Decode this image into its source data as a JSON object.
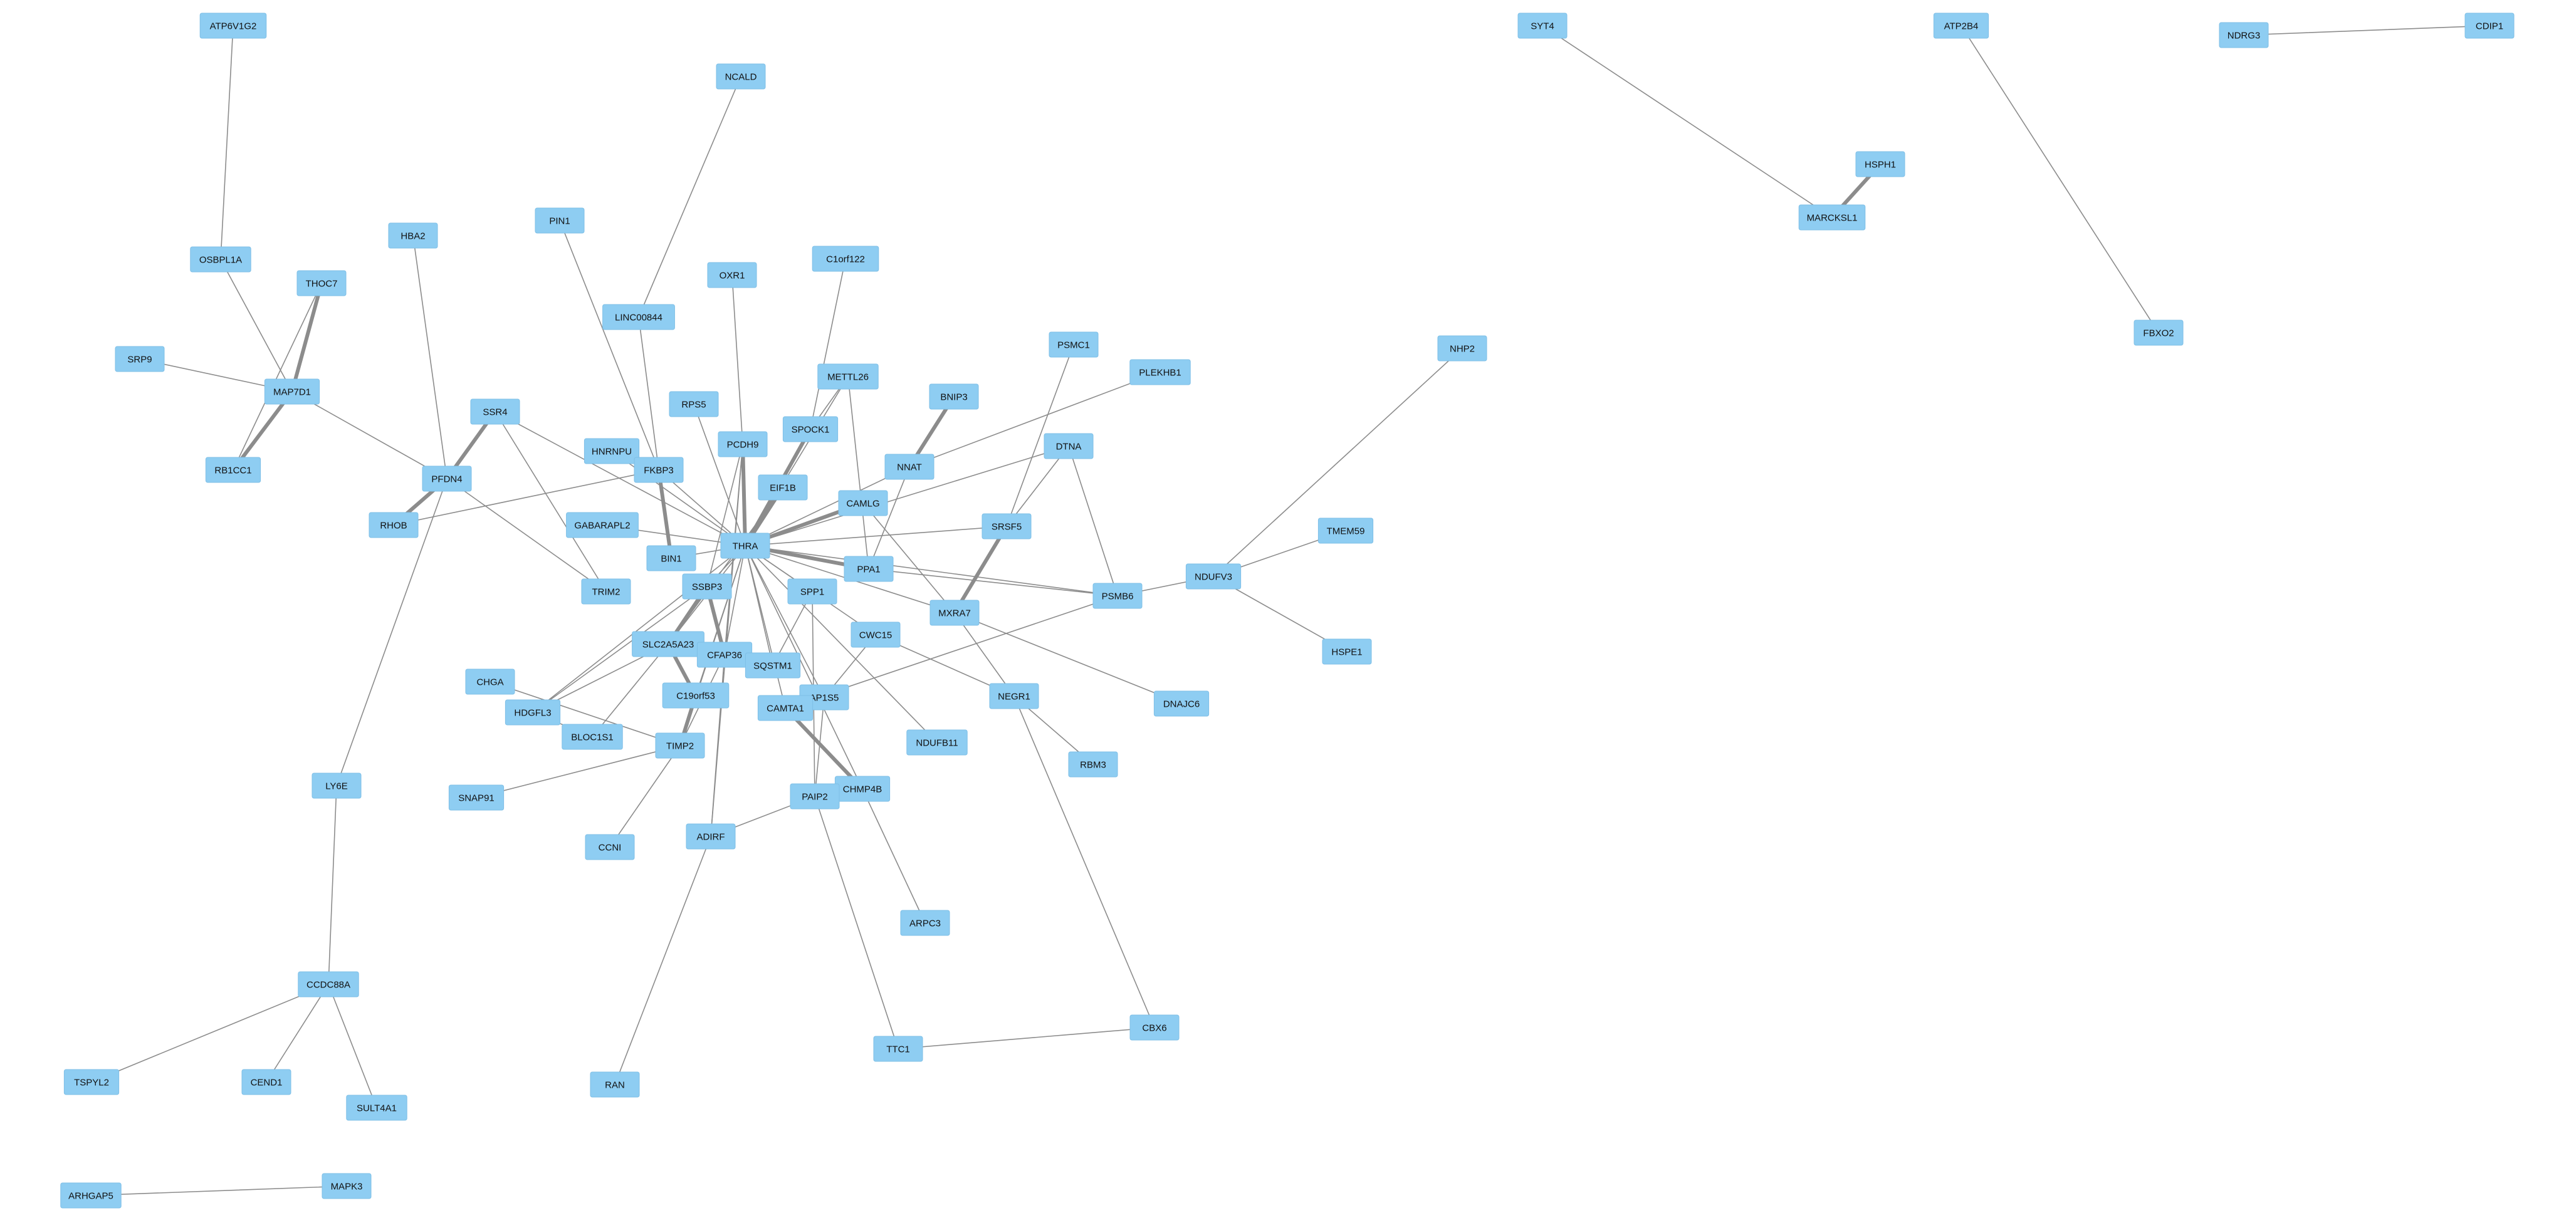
{
  "colors": {
    "node_fill": "#8ecdf2",
    "edge": "#8c8c8c",
    "background": "#ffffff"
  },
  "nodes": [
    {
      "id": "ATP6V1G2",
      "label": "ATP6V1G2"
    },
    {
      "id": "NCALD",
      "label": "NCALD"
    },
    {
      "id": "SYT4",
      "label": "SYT4"
    },
    {
      "id": "ATP2B4",
      "label": "ATP2B4"
    },
    {
      "id": "NDRG3",
      "label": "NDRG3"
    },
    {
      "id": "CDIP1",
      "label": "CDIP1"
    },
    {
      "id": "HSPH1",
      "label": "HSPH1"
    },
    {
      "id": "MARCKSL1",
      "label": "MARCKSL1"
    },
    {
      "id": "OSBPL1A",
      "label": "OSBPL1A"
    },
    {
      "id": "HBA2",
      "label": "HBA2"
    },
    {
      "id": "PIN1",
      "label": "PIN1"
    },
    {
      "id": "C1orf122",
      "label": "C1orf122"
    },
    {
      "id": "OXR1",
      "label": "OXR1"
    },
    {
      "id": "THOC7",
      "label": "THOC7"
    },
    {
      "id": "LINC00844",
      "label": "LINC00844"
    },
    {
      "id": "FBXO2",
      "label": "FBXO2"
    },
    {
      "id": "NHP2",
      "label": "NHP2"
    },
    {
      "id": "PSMC1",
      "label": "PSMC1"
    },
    {
      "id": "SRP9",
      "label": "SRP9"
    },
    {
      "id": "PLEKHB1",
      "label": "PLEKHB1"
    },
    {
      "id": "METTL26",
      "label": "METTL26"
    },
    {
      "id": "MAP7D1",
      "label": "MAP7D1"
    },
    {
      "id": "BNIP3",
      "label": "BNIP3"
    },
    {
      "id": "RPS5",
      "label": "RPS5"
    },
    {
      "id": "SSR4",
      "label": "SSR4"
    },
    {
      "id": "SPOCK1",
      "label": "SPOCK1"
    },
    {
      "id": "PCDH9",
      "label": "PCDH9"
    },
    {
      "id": "DTNA",
      "label": "DTNA"
    },
    {
      "id": "HNRNPU",
      "label": "HNRNPU"
    },
    {
      "id": "NNAT",
      "label": "NNAT"
    },
    {
      "id": "RB1CC1",
      "label": "RB1CC1"
    },
    {
      "id": "FKBP3",
      "label": "FKBP3"
    },
    {
      "id": "PFDN4",
      "label": "PFDN4"
    },
    {
      "id": "EIF1B",
      "label": "EIF1B"
    },
    {
      "id": "CAMLG",
      "label": "CAMLG"
    },
    {
      "id": "RHOB",
      "label": "RHOB"
    },
    {
      "id": "GABARAPL2",
      "label": "GABARAPL2"
    },
    {
      "id": "SRSF5",
      "label": "SRSF5"
    },
    {
      "id": "TMEM59",
      "label": "TMEM59"
    },
    {
      "id": "THRA",
      "label": "THRA"
    },
    {
      "id": "BIN1",
      "label": "BIN1"
    },
    {
      "id": "PPA1",
      "label": "PPA1"
    },
    {
      "id": "NDUFV3",
      "label": "NDUFV3"
    },
    {
      "id": "SSBP3",
      "label": "SSBP3"
    },
    {
      "id": "TRIM2",
      "label": "TRIM2"
    },
    {
      "id": "SPP1",
      "label": "SPP1"
    },
    {
      "id": "PSMB6",
      "label": "PSMB6"
    },
    {
      "id": "MXRA7",
      "label": "MXRA7"
    },
    {
      "id": "CWC15",
      "label": "CWC15"
    },
    {
      "id": "SLC2A5A23",
      "label": "SLC2A5A23"
    },
    {
      "id": "HSPE1",
      "label": "HSPE1"
    },
    {
      "id": "CFAP36",
      "label": "CFAP36"
    },
    {
      "id": "SQSTM1",
      "label": "SQSTM1"
    },
    {
      "id": "CHGA",
      "label": "CHGA"
    },
    {
      "id": "C19orf53",
      "label": "C19orf53"
    },
    {
      "id": "NEGR1",
      "label": "NEGR1"
    },
    {
      "id": "AP1S5",
      "label": "AP1S5"
    },
    {
      "id": "DNAJC6",
      "label": "DNAJC6"
    },
    {
      "id": "CAMTA1",
      "label": "CAMTA1"
    },
    {
      "id": "HDGFL3",
      "label": "HDGFL3"
    },
    {
      "id": "BLOC1S1",
      "label": "BLOC1S1"
    },
    {
      "id": "TIMP2",
      "label": "TIMP2"
    },
    {
      "id": "NDUFB11",
      "label": "NDUFB11"
    },
    {
      "id": "RBM3",
      "label": "RBM3"
    },
    {
      "id": "LY6E",
      "label": "LY6E"
    },
    {
      "id": "CHMP4B",
      "label": "CHMP4B"
    },
    {
      "id": "SNAP91",
      "label": "SNAP91"
    },
    {
      "id": "PAIP2",
      "label": "PAIP2"
    },
    {
      "id": "ADIRF",
      "label": "ADIRF"
    },
    {
      "id": "CCNI",
      "label": "CCNI"
    },
    {
      "id": "ARPC3",
      "label": "ARPC3"
    },
    {
      "id": "CCDC88A",
      "label": "CCDC88A"
    },
    {
      "id": "CBX6",
      "label": "CBX6"
    },
    {
      "id": "TTC1",
      "label": "TTC1"
    },
    {
      "id": "TSPYL2",
      "label": "TSPYL2"
    },
    {
      "id": "CEND1",
      "label": "CEND1"
    },
    {
      "id": "RAN",
      "label": "RAN"
    },
    {
      "id": "SULT4A1",
      "label": "SULT4A1"
    },
    {
      "id": "MAPK3",
      "label": "MAPK3"
    },
    {
      "id": "ARHGAP5",
      "label": "ARHGAP5"
    }
  ],
  "edges": [
    {
      "source": "ATP6V1G2",
      "target": "OSBPL1A",
      "strong": false
    },
    {
      "source": "NCALD",
      "target": "LINC00844",
      "strong": false
    },
    {
      "source": "SYT4",
      "target": "MARCKSL1",
      "strong": false
    },
    {
      "source": "HSPH1",
      "target": "MARCKSL1",
      "strong": true
    },
    {
      "source": "ATP2B4",
      "target": "FBXO2",
      "strong": false
    },
    {
      "source": "NDRG3",
      "target": "CDIP1",
      "strong": false
    },
    {
      "source": "OSBPL1A",
      "target": "MAP7D1",
      "strong": false
    },
    {
      "source": "SRP9",
      "target": "MAP7D1",
      "strong": false
    },
    {
      "source": "THOC7",
      "target": "MAP7D1",
      "strong": true
    },
    {
      "source": "THOC7",
      "target": "RB1CC1",
      "strong": false
    },
    {
      "source": "MAP7D1",
      "target": "RB1CC1",
      "strong": true
    },
    {
      "source": "MAP7D1",
      "target": "PFDN4",
      "strong": false
    },
    {
      "source": "HBA2",
      "target": "PFDN4",
      "strong": false
    },
    {
      "source": "SSR4",
      "target": "PFDN4",
      "strong": true
    },
    {
      "source": "SSR4",
      "target": "TRIM2",
      "strong": false
    },
    {
      "source": "SSR4",
      "target": "THRA",
      "strong": false
    },
    {
      "source": "PFDN4",
      "target": "RHOB",
      "strong": true
    },
    {
      "source": "PFDN4",
      "target": "TRIM2",
      "strong": false
    },
    {
      "source": "PFDN4",
      "target": "LY6E",
      "strong": false
    },
    {
      "source": "RHOB",
      "target": "FKBP3",
      "strong": false
    },
    {
      "source": "PIN1",
      "target": "FKBP3",
      "strong": false
    },
    {
      "source": "LINC00844",
      "target": "FKBP3",
      "strong": false
    },
    {
      "source": "HNRNPU",
      "target": "THRA",
      "strong": false
    },
    {
      "source": "FKBP3",
      "target": "THRA",
      "strong": false
    },
    {
      "source": "FKBP3",
      "target": "BIN1",
      "strong": true
    },
    {
      "source": "OXR1",
      "target": "PCDH9",
      "strong": false
    },
    {
      "source": "C1orf122",
      "target": "SPOCK1",
      "strong": false
    },
    {
      "source": "RPS5",
      "target": "THRA",
      "strong": false
    },
    {
      "source": "PCDH9",
      "target": "THRA",
      "strong": true
    },
    {
      "source": "PCDH9",
      "target": "SSBP3",
      "strong": false
    },
    {
      "source": "PCDH9",
      "target": "CFAP36",
      "strong": false
    },
    {
      "source": "PCDH9",
      "target": "ADIRF",
      "strong": false
    },
    {
      "source": "SPOCK1",
      "target": "THRA",
      "strong": true
    },
    {
      "source": "SPOCK1",
      "target": "METTL26",
      "strong": false
    },
    {
      "source": "METTL26",
      "target": "THRA",
      "strong": false
    },
    {
      "source": "METTL26",
      "target": "PPA1",
      "strong": false
    },
    {
      "source": "EIF1B",
      "target": "THRA",
      "strong": true
    },
    {
      "source": "EIF1B",
      "target": "SLC2A5A23",
      "strong": false
    },
    {
      "source": "BNIP3",
      "target": "NNAT",
      "strong": true
    },
    {
      "source": "NNAT",
      "target": "THRA",
      "strong": false
    },
    {
      "source": "NNAT",
      "target": "PPA1",
      "strong": false
    },
    {
      "source": "PLEKHB1",
      "target": "NNAT",
      "strong": false
    },
    {
      "source": "CAMLG",
      "target": "THRA",
      "strong": true
    },
    {
      "source": "CAMLG",
      "target": "MXRA7",
      "strong": false
    },
    {
      "source": "DTNA",
      "target": "THRA",
      "strong": false
    },
    {
      "source": "DTNA",
      "target": "SRSF5",
      "strong": false
    },
    {
      "source": "DTNA",
      "target": "PSMB6",
      "strong": false
    },
    {
      "source": "PSMC1",
      "target": "SRSF5",
      "strong": false
    },
    {
      "source": "SRSF5",
      "target": "MXRA7",
      "strong": true
    },
    {
      "source": "SRSF5",
      "target": "THRA",
      "strong": false
    },
    {
      "source": "GABARAPL2",
      "target": "THRA",
      "strong": false
    },
    {
      "source": "BIN1",
      "target": "THRA",
      "strong": false
    },
    {
      "source": "THRA",
      "target": "PPA1",
      "strong": true
    },
    {
      "source": "THRA",
      "target": "SPP1",
      "strong": false
    },
    {
      "source": "THRA",
      "target": "SSBP3",
      "strong": false
    },
    {
      "source": "THRA",
      "target": "SLC2A5A23",
      "strong": false
    },
    {
      "source": "THRA",
      "target": "CFAP36",
      "strong": false
    },
    {
      "source": "THRA",
      "target": "SQSTM1",
      "strong": false
    },
    {
      "source": "THRA",
      "target": "C19orf53",
      "strong": false
    },
    {
      "source": "THRA",
      "target": "CAMTA1",
      "strong": false
    },
    {
      "source": "THRA",
      "target": "AP1S5",
      "strong": false
    },
    {
      "source": "THRA",
      "target": "CWC15",
      "strong": false
    },
    {
      "source": "THRA",
      "target": "MXRA7",
      "strong": false
    },
    {
      "source": "THRA",
      "target": "PSMB6",
      "strong": false
    },
    {
      "source": "THRA",
      "target": "NDUFB11",
      "strong": false
    },
    {
      "source": "THRA",
      "target": "TIMP2",
      "strong": false
    },
    {
      "source": "THRA",
      "target": "HDGFL3",
      "strong": false
    },
    {
      "source": "THRA",
      "target": "CHMP4B",
      "strong": false
    },
    {
      "source": "PPA1",
      "target": "PSMB6",
      "strong": false
    },
    {
      "source": "SPP1",
      "target": "SQSTM1",
      "strong": false
    },
    {
      "source": "SPP1",
      "target": "PAIP2",
      "strong": false
    },
    {
      "source": "MXRA7",
      "target": "NEGR1",
      "strong": false
    },
    {
      "source": "MXRA7",
      "target": "DNAJC6",
      "strong": false
    },
    {
      "source": "PSMB6",
      "target": "NDUFV3",
      "strong": false
    },
    {
      "source": "PSMB6",
      "target": "CAMTA1",
      "strong": false
    },
    {
      "source": "NDUFV3",
      "target": "NHP2",
      "strong": false
    },
    {
      "source": "NDUFV3",
      "target": "TMEM59",
      "strong": false
    },
    {
      "source": "NDUFV3",
      "target": "HSPE1",
      "strong": false
    },
    {
      "source": "CWC15",
      "target": "NEGR1",
      "strong": false
    },
    {
      "source": "CWC15",
      "target": "AP1S5",
      "strong": false
    },
    {
      "source": "NEGR1",
      "target": "RBM3",
      "strong": false
    },
    {
      "source": "NEGR1",
      "target": "CBX6",
      "strong": false
    },
    {
      "source": "SSBP3",
      "target": "SLC2A5A23",
      "strong": true
    },
    {
      "source": "SSBP3",
      "target": "HDGFL3",
      "strong": false
    },
    {
      "source": "SSBP3",
      "target": "CFAP36",
      "strong": true
    },
    {
      "source": "SLC2A5A23",
      "target": "C19orf53",
      "strong": true
    },
    {
      "source": "SLC2A5A23",
      "target": "BLOC1S1",
      "strong": false
    },
    {
      "source": "SLC2A5A23",
      "target": "HDGFL3",
      "strong": false
    },
    {
      "source": "CFAP36",
      "target": "TIMP2",
      "strong": false
    },
    {
      "source": "CFAP36",
      "target": "ADIRF",
      "strong": false
    },
    {
      "source": "CHGA",
      "target": "TIMP2",
      "strong": false
    },
    {
      "source": "HDGFL3",
      "target": "BLOC1S1",
      "strong": false
    },
    {
      "source": "C19orf53",
      "target": "TIMP2",
      "strong": true
    },
    {
      "source": "TIMP2",
      "target": "SNAP91",
      "strong": false
    },
    {
      "source": "TIMP2",
      "target": "CCNI",
      "strong": false
    },
    {
      "source": "CAMTA1",
      "target": "CHMP4B",
      "strong": true
    },
    {
      "source": "AP1S5",
      "target": "PAIP2",
      "strong": false
    },
    {
      "source": "CHMP4B",
      "target": "ARPC3",
      "strong": false
    },
    {
      "source": "PAIP2",
      "target": "ADIRF",
      "strong": false
    },
    {
      "source": "PAIP2",
      "target": "TTC1",
      "strong": false
    },
    {
      "source": "ADIRF",
      "target": "RAN",
      "strong": false
    },
    {
      "source": "TTC1",
      "target": "CBX6",
      "strong": false
    },
    {
      "source": "LY6E",
      "target": "CCDC88A",
      "strong": false
    },
    {
      "source": "CCDC88A",
      "target": "TSPYL2",
      "strong": false
    },
    {
      "source": "CCDC88A",
      "target": "CEND1",
      "strong": false
    },
    {
      "source": "CCDC88A",
      "target": "SULT4A1",
      "strong": false
    },
    {
      "source": "ARHGAP5",
      "target": "MAPK3",
      "strong": false
    }
  ]
}
